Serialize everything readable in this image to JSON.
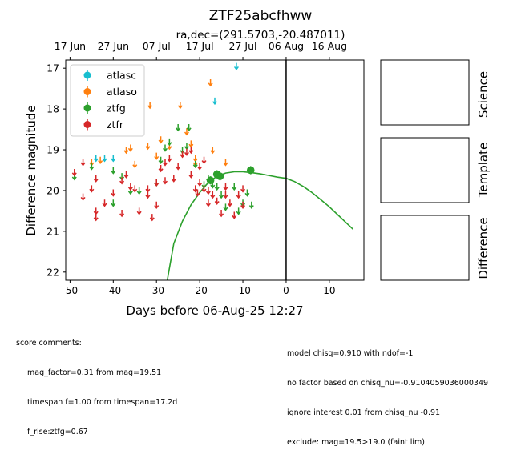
{
  "chart_data": {
    "type": "scatter",
    "title": "ZTF25abcfhww",
    "subtitle": "ra,dec=(291.5703,-20.487011)",
    "xlabel": "Days before 06-Aug-25 12:27",
    "ylabel": "Difference magnitude",
    "xlim": [
      -51,
      18
    ],
    "ylim": [
      22.2,
      16.8
    ],
    "y_inverted": true,
    "xticks": [
      -50,
      -40,
      -30,
      -20,
      -10,
      0,
      10
    ],
    "yticks": [
      17,
      18,
      19,
      20,
      21,
      22
    ],
    "top_axis": {
      "labels": [
        "17 Jun",
        "27 Jun",
        "07 Jul",
        "17 Jul",
        "27 Jul",
        "06 Aug",
        "16 Aug"
      ],
      "positions": [
        -50,
        -40,
        -30,
        -20,
        -10,
        0,
        10
      ]
    },
    "vline": 0,
    "legend": {
      "placement": "top-left",
      "entries": [
        "atlasc",
        "atlaso",
        "ztfg",
        "ztfr"
      ]
    },
    "colors": {
      "atlasc": "#17becf",
      "atlaso": "#ff7f0e",
      "ztfg": "#2ca02c",
      "ztfr": "#d62728"
    },
    "series": [
      {
        "name": "atlasc",
        "kind": "upper_limit",
        "points": [
          [
            -44,
            19.2
          ],
          [
            -42,
            19.2
          ],
          [
            -40,
            19.2
          ],
          [
            -16.5,
            17.8
          ],
          [
            -15.5,
            19.6
          ],
          [
            -11.5,
            16.95
          ]
        ]
      },
      {
        "name": "atlaso",
        "kind": "upper_limit",
        "points": [
          [
            -45,
            19.3
          ],
          [
            -43,
            19.25
          ],
          [
            -37,
            19.0
          ],
          [
            -36,
            18.95
          ],
          [
            -35,
            19.35
          ],
          [
            -32,
            18.9
          ],
          [
            -31.5,
            17.9
          ],
          [
            -30,
            19.15
          ],
          [
            -29,
            18.75
          ],
          [
            -27,
            18.9
          ],
          [
            -24.5,
            17.9
          ],
          [
            -24,
            19.1
          ],
          [
            -23,
            18.55
          ],
          [
            -22,
            18.85
          ],
          [
            -21,
            19.2
          ],
          [
            -21,
            19.3
          ],
          [
            -17.5,
            17.35
          ],
          [
            -17,
            19.0
          ],
          [
            -14,
            19.3
          ]
        ]
      },
      {
        "name": "ztfg",
        "kind": "upper_limit",
        "points": [
          [
            -49,
            19.65
          ],
          [
            -45,
            19.4
          ],
          [
            -40,
            19.5
          ],
          [
            -40,
            20.3
          ],
          [
            -38,
            19.65
          ],
          [
            -36,
            20.0
          ],
          [
            -34,
            20.0
          ],
          [
            -30,
            19.8
          ],
          [
            -29,
            19.25
          ],
          [
            -28,
            18.95
          ],
          [
            -27,
            18.8
          ],
          [
            -25,
            18.45
          ],
          [
            -24,
            19.0
          ],
          [
            -23,
            18.9
          ],
          [
            -22.5,
            18.45
          ],
          [
            -21,
            19.35
          ],
          [
            -19,
            19.85
          ],
          [
            -18,
            19.7
          ],
          [
            -17,
            19.85
          ],
          [
            -16,
            19.9
          ],
          [
            -15,
            20.1
          ],
          [
            -14,
            20.4
          ],
          [
            -12,
            19.9
          ],
          [
            -11,
            20.5
          ],
          [
            -10,
            20.3
          ],
          [
            -9,
            20.05
          ],
          [
            -8,
            20.35
          ]
        ]
      },
      {
        "name": "ztfg",
        "kind": "detection",
        "points": [
          [
            -17.5,
            19.75,
            0.1
          ],
          [
            -16,
            19.6,
            0.1
          ],
          [
            -15.3,
            19.65,
            0.1
          ],
          [
            -8.2,
            19.5,
            0.1
          ]
        ]
      },
      {
        "name": "ztfr",
        "kind": "upper_limit",
        "points": [
          [
            -49,
            19.55
          ],
          [
            -47,
            19.3
          ],
          [
            -47,
            20.15
          ],
          [
            -45,
            19.95
          ],
          [
            -44,
            19.7
          ],
          [
            -44,
            20.5
          ],
          [
            -44,
            20.65
          ],
          [
            -42,
            20.3
          ],
          [
            -40,
            20.05
          ],
          [
            -38,
            19.75
          ],
          [
            -38,
            20.55
          ],
          [
            -37,
            19.6
          ],
          [
            -36,
            19.9
          ],
          [
            -35,
            19.95
          ],
          [
            -34,
            20.5
          ],
          [
            -32,
            19.95
          ],
          [
            -32,
            20.1
          ],
          [
            -31,
            20.65
          ],
          [
            -30,
            19.8
          ],
          [
            -30,
            20.35
          ],
          [
            -29,
            19.45
          ],
          [
            -28,
            19.3
          ],
          [
            -28,
            19.75
          ],
          [
            -27,
            19.2
          ],
          [
            -26,
            19.7
          ],
          [
            -25,
            19.4
          ],
          [
            -24,
            19.1
          ],
          [
            -23,
            19.05
          ],
          [
            -22,
            19.0
          ],
          [
            -22,
            19.6
          ],
          [
            -21,
            19.95
          ],
          [
            -20.5,
            20.05
          ],
          [
            -20,
            19.4
          ],
          [
            -20,
            19.8
          ],
          [
            -19,
            19.25
          ],
          [
            -19,
            19.95
          ],
          [
            -18,
            20.0
          ],
          [
            -18,
            20.3
          ],
          [
            -17,
            20.1
          ],
          [
            -16,
            20.25
          ],
          [
            -15,
            20.55
          ],
          [
            -14,
            19.9
          ],
          [
            -14,
            20.1
          ],
          [
            -13,
            20.3
          ],
          [
            -12,
            20.6
          ],
          [
            -11,
            20.1
          ],
          [
            -10,
            20.35
          ],
          [
            -10,
            19.95
          ]
        ]
      }
    ],
    "model_curve": {
      "series": "ztfg",
      "x": [
        -27.5,
        -26,
        -24,
        -22,
        -20,
        -18,
        -16,
        -14,
        -12,
        -10,
        -8,
        -6,
        -4,
        -2,
        0,
        2,
        4,
        6,
        8,
        10,
        12,
        14,
        15.5
      ],
      "y": [
        22.2,
        21.3,
        20.75,
        20.35,
        20.05,
        19.8,
        19.65,
        19.57,
        19.54,
        19.54,
        19.56,
        19.59,
        19.63,
        19.67,
        19.7,
        19.78,
        19.9,
        20.05,
        20.22,
        20.4,
        20.6,
        20.8,
        20.95
      ]
    },
    "panels": [
      "Science",
      "Template",
      "Difference"
    ]
  },
  "comments": {
    "left": [
      "score comments:",
      "mag_factor=0.31 from mag=19.51",
      "timespan f=1.00 from timespan=17.2d",
      "f_rise:ztfg=0.67"
    ],
    "right": [
      "model chisq=0.910 with ndof=-1",
      "no factor based on chisq_nu=-0.9104059036000349",
      "ignore interest 0.01 from chisq_nu -0.91",
      "exclude: mag=19.5>19.0 (faint lim)"
    ]
  }
}
